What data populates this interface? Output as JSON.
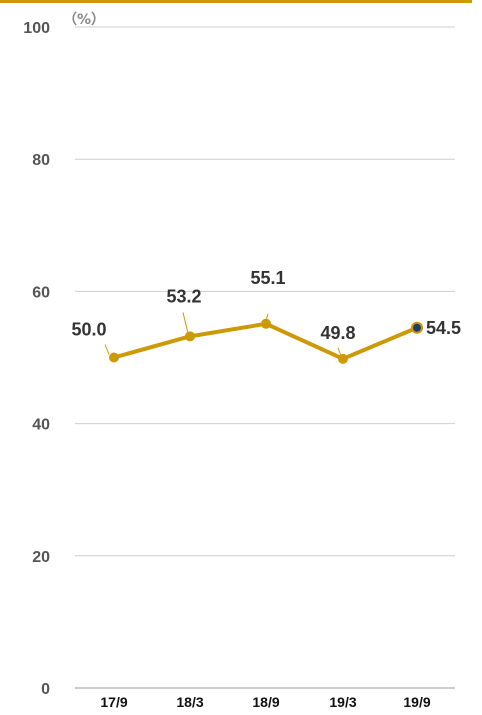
{
  "chart_data": {
    "type": "line",
    "unit": "（%）",
    "categories": [
      "17/9",
      "18/3",
      "18/9",
      "19/3",
      "19/9"
    ],
    "series": [
      {
        "values": [
          50.0,
          53.2,
          55.1,
          49.8,
          54.5
        ],
        "labels": [
          "50.0",
          "53.2",
          "55.1",
          "49.8",
          "54.5"
        ],
        "color": "#cc9a06",
        "last_point_color": "#1f3d6e"
      }
    ],
    "ylim": [
      0,
      100
    ],
    "yticks": [
      0,
      20,
      40,
      60,
      80,
      100
    ],
    "ytick_labels": [
      "0",
      "20",
      "40",
      "60",
      "80",
      "100"
    ],
    "grid": true,
    "accent_color": "#cc9a06"
  }
}
